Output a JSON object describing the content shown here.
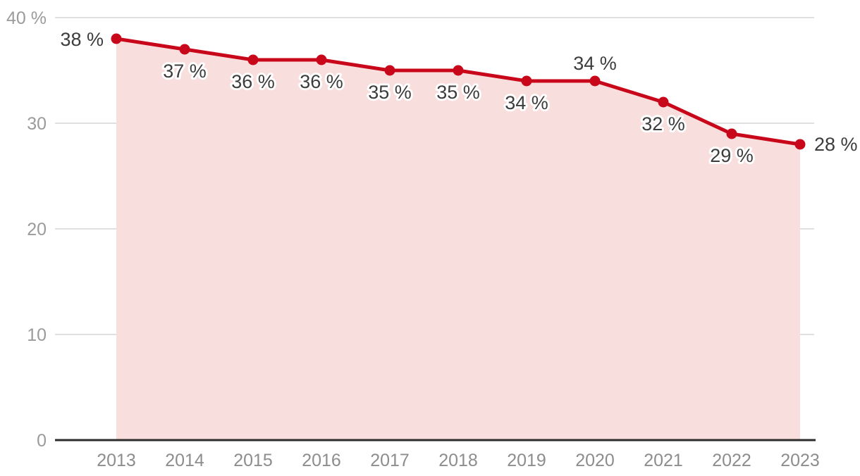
{
  "chart_data": {
    "type": "area",
    "title": "",
    "xlabel": "",
    "ylabel": "",
    "categories": [
      "2013",
      "2014",
      "2015",
      "2016",
      "2017",
      "2018",
      "2019",
      "2020",
      "2021",
      "2022",
      "2023"
    ],
    "values": [
      38,
      37,
      36,
      36,
      35,
      35,
      34,
      34,
      32,
      29,
      28
    ],
    "point_labels": [
      "38 %",
      "37 %",
      "36 %",
      "36 %",
      "35 %",
      "35 %",
      "34 %",
      "34 %",
      "32 %",
      "29 %",
      "28 %"
    ],
    "point_label_positions": [
      "left",
      "below",
      "below",
      "below",
      "below",
      "below",
      "below",
      "above",
      "below",
      "below",
      "right"
    ],
    "yticks": [
      {
        "value": 0,
        "label": "0"
      },
      {
        "value": 10,
        "label": "10"
      },
      {
        "value": 20,
        "label": "20"
      },
      {
        "value": 30,
        "label": "30"
      },
      {
        "value": 40,
        "label": "40 %"
      }
    ],
    "ylim": [
      0,
      40
    ],
    "grid": true,
    "legend": false,
    "colors": {
      "line": "#c9071a",
      "area_fill": "#f8dedd",
      "grid": "#e0e0e0",
      "axis": "#2c2c2c",
      "ytick_text": "#9b9b9b",
      "xtick_text": "#8d8d8d",
      "data_label_text": "#3c3c3c",
      "data_label_halo": "#ffffff",
      "background": "#ffffff"
    }
  }
}
